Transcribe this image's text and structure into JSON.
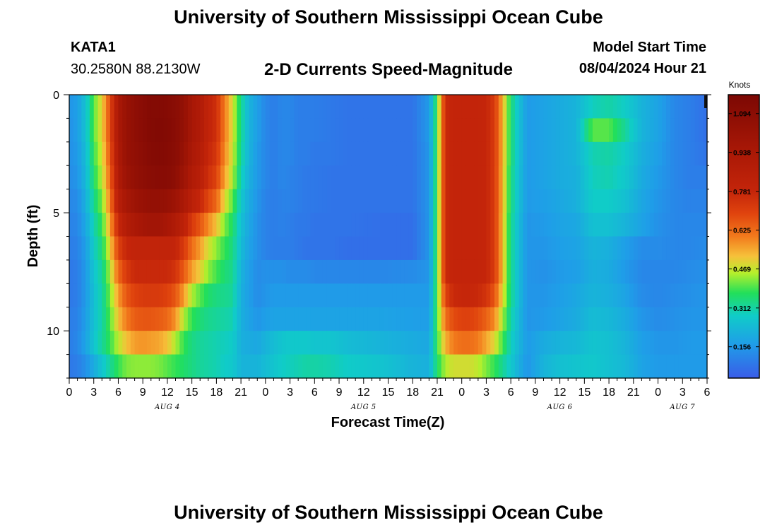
{
  "page_title": "University of Southern Mississippi Ocean Cube",
  "footer_title": "University of Southern Mississippi Ocean Cube",
  "station": {
    "id": "KATA1",
    "coords": "30.2580N  88.2130W"
  },
  "model": {
    "label": "Model Start Time",
    "datetime": "08/04/2024 Hour 21"
  },
  "chart_data": {
    "type": "heatmap",
    "title": "2-D Currents Speed-Magnitude",
    "xlabel": "Forecast Time(Z)",
    "ylabel": "Depth (ft)",
    "x_range_hours_from_aug4_00z": [
      0,
      78
    ],
    "x_tick_labels": [
      "0",
      "3",
      "6",
      "9",
      "12",
      "15",
      "18",
      "21",
      "0",
      "3",
      "6",
      "9",
      "12",
      "15",
      "18",
      "21",
      "0",
      "3",
      "6",
      "9",
      "12",
      "15",
      "18",
      "21",
      "0",
      "3",
      "6"
    ],
    "date_labels": [
      {
        "label": "AUG 4",
        "hour": 12
      },
      {
        "label": "AUG 5",
        "hour": 36
      },
      {
        "label": "AUG 6",
        "hour": 60
      },
      {
        "label": "AUG 7",
        "hour": 75
      }
    ],
    "y_range_ft": [
      0,
      12
    ],
    "y_tick_labels": [
      "0",
      "5",
      "10"
    ],
    "colorbar": {
      "title": "Knots",
      "min": 0.03,
      "max": 1.17,
      "tick_labels": [
        "1.094",
        "0.938",
        "0.781",
        "0.625",
        "0.469",
        "0.312",
        "0.156"
      ]
    },
    "depth_rows_ft": [
      0.5,
      1.5,
      2.5,
      3.5,
      4.5,
      5.5,
      6.5,
      7.5,
      8.5,
      9.5,
      10.5,
      11.5
    ],
    "time_key_hours": [
      0,
      1,
      2,
      3,
      4,
      5,
      6,
      7,
      8,
      9,
      10,
      11,
      12,
      13,
      14,
      15,
      16,
      17,
      18,
      19,
      20,
      21,
      22,
      23,
      24,
      25,
      26,
      27,
      28,
      29,
      30,
      32,
      34,
      38,
      42,
      44,
      45,
      46,
      47,
      48,
      49,
      50,
      51,
      52,
      54,
      56,
      58,
      60,
      62,
      64,
      66,
      68,
      70,
      72,
      74,
      76,
      78
    ],
    "speed_knots": [
      [
        0.15,
        0.17,
        0.25,
        0.4,
        0.5,
        0.68,
        0.93,
        1.03,
        1.07,
        1.1,
        1.13,
        1.13,
        1.12,
        1.1,
        1.05,
        0.95,
        0.9,
        0.8,
        0.75,
        0.6,
        0.48,
        0.33,
        0.22,
        0.17,
        0.12,
        0.1,
        0.12,
        0.12,
        0.1,
        0.1,
        0.1,
        0.09,
        0.08,
        0.08,
        0.08,
        0.16,
        0.39,
        0.77,
        0.79,
        0.79,
        0.79,
        0.79,
        0.78,
        0.72,
        0.35,
        0.16,
        0.18,
        0.2,
        0.22,
        0.29,
        0.31,
        0.28,
        0.22,
        0.18,
        0.12,
        0.1,
        0.07
      ],
      [
        0.14,
        0.17,
        0.25,
        0.4,
        0.5,
        0.68,
        0.93,
        1.03,
        1.07,
        1.1,
        1.13,
        1.14,
        1.13,
        1.1,
        1.05,
        0.95,
        0.9,
        0.8,
        0.75,
        0.6,
        0.48,
        0.33,
        0.22,
        0.17,
        0.12,
        0.1,
        0.12,
        0.12,
        0.1,
        0.1,
        0.1,
        0.09,
        0.08,
        0.08,
        0.08,
        0.16,
        0.39,
        0.77,
        0.79,
        0.79,
        0.79,
        0.79,
        0.78,
        0.72,
        0.35,
        0.16,
        0.18,
        0.2,
        0.22,
        0.4,
        0.4,
        0.32,
        0.22,
        0.18,
        0.12,
        0.1,
        0.07
      ],
      [
        0.14,
        0.16,
        0.24,
        0.38,
        0.48,
        0.66,
        0.92,
        1.03,
        1.06,
        1.09,
        1.12,
        1.13,
        1.12,
        1.1,
        1.03,
        0.93,
        0.88,
        0.78,
        0.73,
        0.58,
        0.47,
        0.32,
        0.22,
        0.16,
        0.12,
        0.1,
        0.12,
        0.12,
        0.1,
        0.1,
        0.09,
        0.09,
        0.08,
        0.08,
        0.08,
        0.15,
        0.39,
        0.77,
        0.79,
        0.79,
        0.79,
        0.79,
        0.78,
        0.72,
        0.35,
        0.16,
        0.18,
        0.2,
        0.22,
        0.3,
        0.31,
        0.28,
        0.21,
        0.17,
        0.12,
        0.1,
        0.08
      ],
      [
        0.13,
        0.15,
        0.23,
        0.36,
        0.46,
        0.63,
        0.9,
        1.01,
        1.05,
        1.08,
        1.1,
        1.11,
        1.11,
        1.08,
        1.0,
        0.9,
        0.85,
        0.75,
        0.7,
        0.55,
        0.45,
        0.3,
        0.21,
        0.16,
        0.12,
        0.1,
        0.12,
        0.11,
        0.1,
        0.09,
        0.09,
        0.08,
        0.08,
        0.08,
        0.08,
        0.15,
        0.39,
        0.77,
        0.79,
        0.79,
        0.79,
        0.79,
        0.78,
        0.72,
        0.34,
        0.16,
        0.18,
        0.2,
        0.21,
        0.29,
        0.3,
        0.27,
        0.2,
        0.16,
        0.12,
        0.1,
        0.1
      ],
      [
        0.12,
        0.13,
        0.21,
        0.33,
        0.42,
        0.6,
        0.85,
        0.95,
        1.0,
        1.03,
        1.05,
        1.05,
        1.04,
        1.0,
        0.93,
        0.84,
        0.78,
        0.69,
        0.63,
        0.49,
        0.4,
        0.27,
        0.2,
        0.15,
        0.11,
        0.1,
        0.11,
        0.11,
        0.1,
        0.09,
        0.09,
        0.08,
        0.08,
        0.08,
        0.08,
        0.15,
        0.39,
        0.77,
        0.79,
        0.79,
        0.79,
        0.79,
        0.78,
        0.72,
        0.34,
        0.16,
        0.17,
        0.19,
        0.21,
        0.28,
        0.28,
        0.25,
        0.19,
        0.15,
        0.12,
        0.11,
        0.11
      ],
      [
        0.11,
        0.12,
        0.19,
        0.3,
        0.38,
        0.55,
        0.78,
        0.88,
        0.93,
        0.96,
        0.98,
        0.98,
        0.95,
        0.9,
        0.83,
        0.72,
        0.66,
        0.58,
        0.52,
        0.42,
        0.36,
        0.25,
        0.19,
        0.14,
        0.11,
        0.1,
        0.11,
        0.1,
        0.09,
        0.09,
        0.08,
        0.08,
        0.08,
        0.07,
        0.07,
        0.15,
        0.39,
        0.77,
        0.79,
        0.79,
        0.79,
        0.79,
        0.78,
        0.72,
        0.33,
        0.15,
        0.16,
        0.18,
        0.19,
        0.25,
        0.25,
        0.22,
        0.18,
        0.14,
        0.12,
        0.12,
        0.12
      ],
      [
        0.1,
        0.11,
        0.17,
        0.28,
        0.35,
        0.5,
        0.7,
        0.78,
        0.8,
        0.8,
        0.8,
        0.8,
        0.8,
        0.79,
        0.72,
        0.62,
        0.56,
        0.48,
        0.43,
        0.38,
        0.34,
        0.24,
        0.18,
        0.14,
        0.11,
        0.1,
        0.1,
        0.1,
        0.09,
        0.08,
        0.08,
        0.08,
        0.07,
        0.07,
        0.07,
        0.15,
        0.39,
        0.77,
        0.79,
        0.79,
        0.79,
        0.79,
        0.78,
        0.72,
        0.33,
        0.15,
        0.15,
        0.17,
        0.18,
        0.22,
        0.21,
        0.17,
        0.13,
        0.13,
        0.12,
        0.12,
        0.13
      ],
      [
        0.09,
        0.1,
        0.16,
        0.26,
        0.32,
        0.45,
        0.63,
        0.72,
        0.77,
        0.77,
        0.77,
        0.77,
        0.77,
        0.74,
        0.65,
        0.56,
        0.5,
        0.43,
        0.39,
        0.35,
        0.33,
        0.22,
        0.17,
        0.13,
        0.14,
        0.14,
        0.14,
        0.13,
        0.13,
        0.13,
        0.12,
        0.12,
        0.12,
        0.12,
        0.13,
        0.15,
        0.39,
        0.77,
        0.79,
        0.79,
        0.79,
        0.79,
        0.78,
        0.72,
        0.33,
        0.15,
        0.14,
        0.16,
        0.17,
        0.21,
        0.2,
        0.16,
        0.12,
        0.12,
        0.12,
        0.13,
        0.14
      ],
      [
        0.09,
        0.1,
        0.16,
        0.25,
        0.31,
        0.42,
        0.56,
        0.66,
        0.7,
        0.72,
        0.72,
        0.72,
        0.7,
        0.66,
        0.56,
        0.45,
        0.4,
        0.36,
        0.34,
        0.33,
        0.32,
        0.21,
        0.17,
        0.13,
        0.15,
        0.16,
        0.16,
        0.16,
        0.16,
        0.16,
        0.16,
        0.16,
        0.16,
        0.16,
        0.16,
        0.16,
        0.39,
        0.7,
        0.77,
        0.78,
        0.78,
        0.77,
        0.74,
        0.66,
        0.33,
        0.15,
        0.15,
        0.17,
        0.19,
        0.22,
        0.21,
        0.18,
        0.13,
        0.12,
        0.13,
        0.14,
        0.15
      ],
      [
        0.1,
        0.11,
        0.17,
        0.25,
        0.31,
        0.4,
        0.52,
        0.6,
        0.65,
        0.66,
        0.66,
        0.65,
        0.63,
        0.57,
        0.45,
        0.38,
        0.35,
        0.33,
        0.32,
        0.31,
        0.3,
        0.21,
        0.18,
        0.15,
        0.17,
        0.18,
        0.18,
        0.18,
        0.18,
        0.18,
        0.18,
        0.18,
        0.18,
        0.18,
        0.17,
        0.17,
        0.39,
        0.62,
        0.68,
        0.7,
        0.7,
        0.68,
        0.64,
        0.58,
        0.31,
        0.15,
        0.16,
        0.18,
        0.2,
        0.24,
        0.23,
        0.2,
        0.15,
        0.13,
        0.14,
        0.15,
        0.15
      ],
      [
        0.1,
        0.12,
        0.18,
        0.26,
        0.32,
        0.38,
        0.46,
        0.52,
        0.56,
        0.57,
        0.56,
        0.55,
        0.52,
        0.45,
        0.38,
        0.34,
        0.32,
        0.31,
        0.3,
        0.29,
        0.28,
        0.21,
        0.2,
        0.19,
        0.22,
        0.24,
        0.26,
        0.27,
        0.27,
        0.27,
        0.26,
        0.26,
        0.24,
        0.22,
        0.2,
        0.19,
        0.38,
        0.54,
        0.6,
        0.62,
        0.62,
        0.6,
        0.55,
        0.49,
        0.29,
        0.16,
        0.2,
        0.22,
        0.23,
        0.26,
        0.25,
        0.22,
        0.17,
        0.15,
        0.15,
        0.16,
        0.16
      ],
      [
        0.09,
        0.1,
        0.14,
        0.2,
        0.26,
        0.32,
        0.38,
        0.42,
        0.43,
        0.43,
        0.43,
        0.42,
        0.4,
        0.38,
        0.36,
        0.34,
        0.32,
        0.31,
        0.3,
        0.28,
        0.27,
        0.22,
        0.22,
        0.22,
        0.24,
        0.26,
        0.28,
        0.29,
        0.3,
        0.31,
        0.31,
        0.3,
        0.28,
        0.26,
        0.22,
        0.21,
        0.36,
        0.45,
        0.48,
        0.48,
        0.48,
        0.46,
        0.42,
        0.38,
        0.27,
        0.15,
        0.22,
        0.25,
        0.26,
        0.27,
        0.25,
        0.23,
        0.18,
        0.16,
        0.16,
        0.16,
        0.16
      ]
    ]
  }
}
